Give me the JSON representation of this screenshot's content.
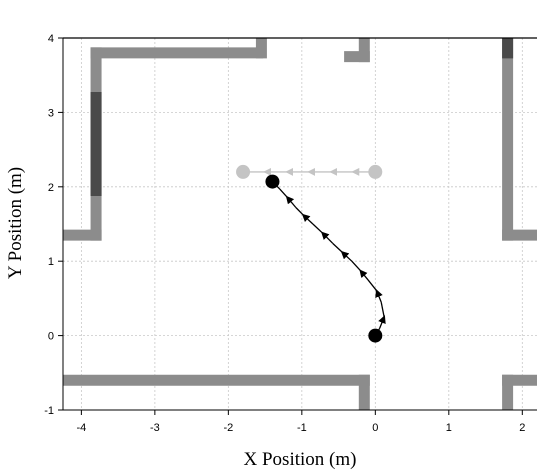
{
  "chart_data": {
    "type": "line",
    "title": "",
    "xlabel": "X Position (m)",
    "ylabel": "Y Position (m)",
    "xlim": [
      -4.25,
      2.2
    ],
    "ylim": [
      -1,
      4
    ],
    "x_ticks": [
      -4,
      -3,
      -2,
      -1,
      0,
      1,
      2
    ],
    "y_ticks": [
      -1,
      0,
      1,
      2,
      3,
      4
    ],
    "x_tick_labels": [
      "-4",
      "-3",
      "-2",
      "-1",
      "0",
      "1",
      "2"
    ],
    "y_tick_labels": [
      "-1",
      "0",
      "1",
      "2",
      "3",
      "4"
    ],
    "grid": true,
    "legend": "none",
    "colors": {
      "wall": "#8c8c8c",
      "wall_dark": "#4a4a4a",
      "reference": "#c4c4c4",
      "trajectory": "#000000",
      "grid": "#c8c8c8"
    },
    "series": [
      {
        "style": "reference",
        "x": [
          -1.8,
          -1.5,
          -1.2,
          -0.9,
          -0.6,
          -0.3,
          0.0
        ],
        "y": [
          2.2,
          2.2,
          2.2,
          2.2,
          2.2,
          2.2,
          2.2
        ]
      },
      {
        "style": "trajectory",
        "x": [
          0.0,
          0.06,
          0.12,
          0.08,
          0.02,
          -0.1,
          -0.2,
          -0.32,
          -0.45,
          -0.58,
          -0.72,
          -0.85,
          -0.98,
          -1.08,
          -1.2,
          -1.3,
          -1.4
        ],
        "y": [
          0.0,
          0.1,
          0.25,
          0.45,
          0.6,
          0.75,
          0.87,
          1.0,
          1.12,
          1.24,
          1.38,
          1.5,
          1.62,
          1.72,
          1.86,
          1.97,
          2.07
        ]
      }
    ],
    "endpoints": [
      {
        "role": "start",
        "x": 0.0,
        "y": 0.0,
        "color": "#000000"
      },
      {
        "role": "end",
        "x": -1.4,
        "y": 2.07,
        "color": "#000000"
      },
      {
        "role": "reference-start",
        "x": 0.0,
        "y": 2.2,
        "color": "#c4c4c4"
      },
      {
        "role": "reference-end",
        "x": -1.8,
        "y": 2.2,
        "color": "#c4c4c4"
      }
    ],
    "walls": [
      {
        "shade": "light",
        "x1": -3.8,
        "y1": 3.8,
        "x2": -1.6,
        "y2": 3.8
      },
      {
        "shade": "light",
        "x1": -1.55,
        "y1": 3.8,
        "x2": -1.55,
        "y2": 4.25
      },
      {
        "shade": "light",
        "x1": -3.8,
        "y1": 3.8,
        "x2": -3.8,
        "y2": 1.35
      },
      {
        "shade": "light",
        "x1": -4.25,
        "y1": 1.35,
        "x2": -3.8,
        "y2": 1.35
      },
      {
        "shade": "dark",
        "x1": -3.8,
        "y1": 3.2,
        "x2": -3.8,
        "y2": 1.95
      },
      {
        "shade": "light",
        "x1": -0.15,
        "y1": 4.25,
        "x2": -0.15,
        "y2": 3.75
      },
      {
        "shade": "light",
        "x1": -0.35,
        "y1": 3.75,
        "x2": -0.15,
        "y2": 3.75
      },
      {
        "shade": "light",
        "x1": 1.8,
        "y1": 4.25,
        "x2": 1.8,
        "y2": 1.35
      },
      {
        "shade": "dark",
        "x1": 1.8,
        "y1": 4.25,
        "x2": 1.8,
        "y2": 3.8
      },
      {
        "shade": "light",
        "x1": 1.8,
        "y1": 1.35,
        "x2": 2.2,
        "y2": 1.35
      },
      {
        "shade": "light",
        "x1": -4.25,
        "y1": -0.6,
        "x2": -0.15,
        "y2": -0.6
      },
      {
        "shade": "light",
        "x1": -0.15,
        "y1": -0.6,
        "x2": -0.15,
        "y2": -1.5
      },
      {
        "shade": "light",
        "x1": 1.8,
        "y1": -0.6,
        "x2": 2.2,
        "y2": -0.6
      },
      {
        "shade": "light",
        "x1": 1.8,
        "y1": -0.6,
        "x2": 1.8,
        "y2": -1.5
      }
    ]
  }
}
